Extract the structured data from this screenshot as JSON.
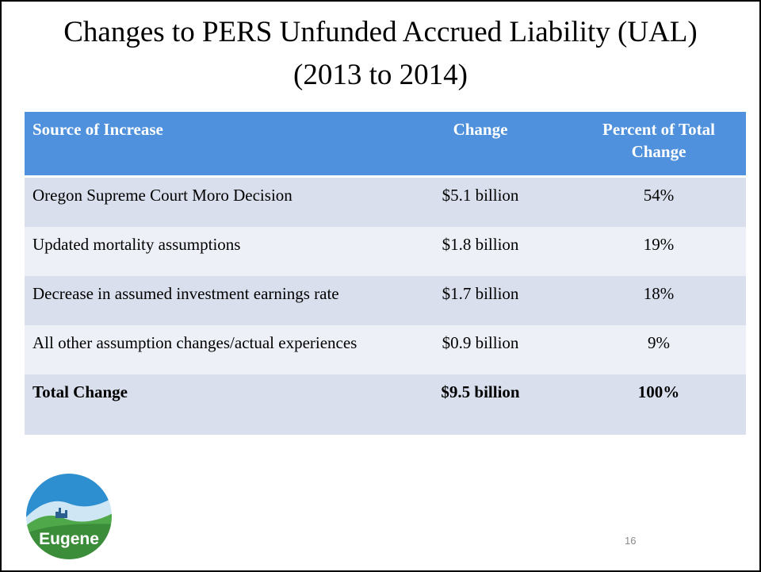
{
  "slide": {
    "title": [
      "Changes to PERS Unfunded Accrued Liability (UAL)",
      "(2013 to 2014)"
    ],
    "table": {
      "header": [
        "Source of Increase",
        "Change",
        "Percent of Total Change"
      ],
      "rows": [
        [
          "Oregon Supreme Court Moro Decision",
          "$5.1 billion",
          "54%"
        ],
        [
          "Updated mortality assumptions",
          "$1.8 billion",
          "19%"
        ],
        [
          "Decrease in assumed investment earnings rate",
          "$1.7 billion",
          "18%"
        ],
        [
          "All other assumption changes/actual experiences",
          "$0.9 billion",
          "9%"
        ],
        [
          "Total Change",
          "$9.5 billion",
          "100%"
        ]
      ]
    },
    "logo_text": "Eugene",
    "page_number": "16"
  }
}
